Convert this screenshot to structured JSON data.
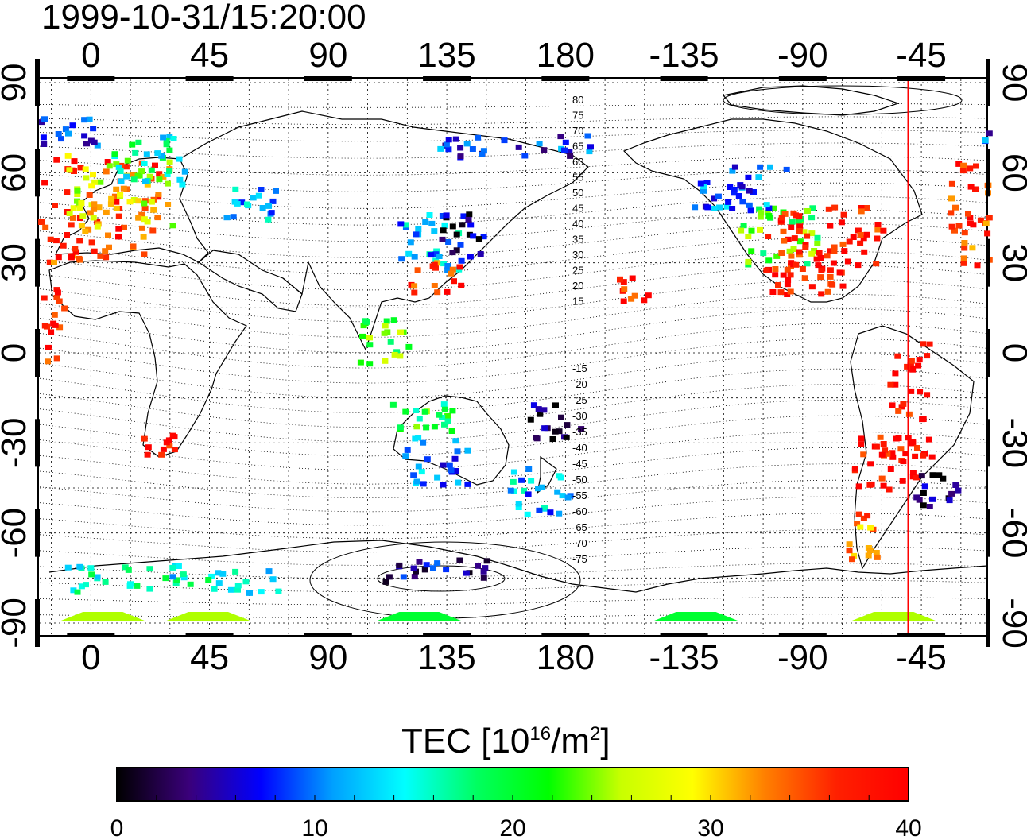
{
  "timestamp": "1999-10-31/15:20:00",
  "colorbar_title": "TEC  [10",
  "colorbar_title_exp": "16",
  "colorbar_title_unit": "/m",
  "colorbar_title_unit_exp": "2",
  "colorbar_title_close": "]",
  "colorbar_ticks": [
    "0",
    "10",
    "20",
    "30",
    "40"
  ],
  "colorbar_range": [
    0,
    40
  ],
  "colorbar_colors": [
    "#000000",
    "#3a007a",
    "#0000ff",
    "#00a0ff",
    "#00ffff",
    "#00ff60",
    "#00ff00",
    "#c8ff00",
    "#ffff00",
    "#ff8000",
    "#ff2000",
    "#ff0000"
  ],
  "map": {
    "lon_ticks_top": [
      "0",
      "45",
      "90",
      "135",
      "180",
      "-135",
      "-90",
      "-45"
    ],
    "lon_ticks_bottom": [
      "0",
      "45",
      "90",
      "135",
      "180",
      "-135",
      "-90",
      "-45"
    ],
    "lat_ticks_left": [
      "90",
      "60",
      "30",
      "0",
      "-30",
      "-60",
      "-90"
    ],
    "lat_ticks_right": [
      "90",
      "60",
      "30",
      "0",
      "-30",
      "-60",
      "-90"
    ],
    "contour_labels_north": [
      "80",
      "75",
      "70",
      "65",
      "60",
      "55",
      "50",
      "45",
      "40",
      "35",
      "30",
      "25",
      "20",
      "15"
    ],
    "contour_labels_south": [
      "-15",
      "-20",
      "-25",
      "-30",
      "-35",
      "-40",
      "-45",
      "-50",
      "-55",
      "-60",
      "-65",
      "-70",
      "-75"
    ],
    "red_line_longitude": -50
  }
}
